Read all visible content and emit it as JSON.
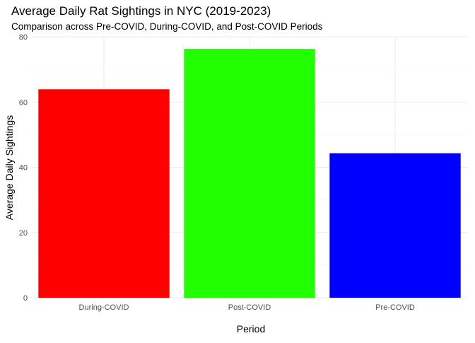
{
  "chart_data": {
    "type": "bar",
    "title": "Average Daily Rat Sightings in NYC (2019-2023)",
    "subtitle": "Comparison across Pre-COVID, During-COVID, and Post-COVID Periods",
    "xlabel": "Period",
    "ylabel": "Average Daily Sightings",
    "categories": [
      "During-COVID",
      "Post-COVID",
      "Pre-COVID"
    ],
    "values": [
      63.9,
      76.3,
      44.3
    ],
    "colors": [
      "#ff0000",
      "#22ff00",
      "#0000ff"
    ],
    "ylim": [
      0,
      80
    ],
    "yticks": [
      0,
      20,
      40,
      60,
      80
    ],
    "grid": true,
    "legend": "none"
  }
}
